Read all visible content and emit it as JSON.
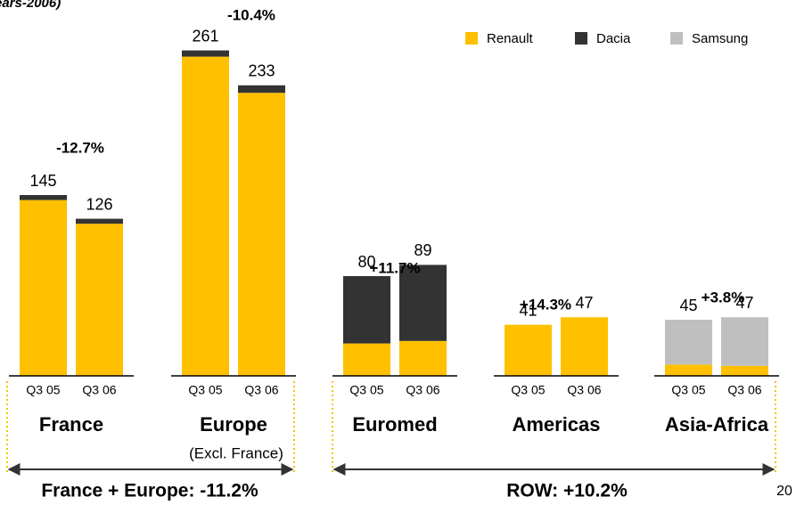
{
  "chart_data": {
    "type": "stacked_bar",
    "title": "ears-2006)",
    "categories": [
      "Q3 05",
      "Q3 06",
      "Q3 05",
      "Q3 06",
      "Q3 05",
      "Q3 06",
      "Q3 05",
      "Q3 06",
      "Q3 05",
      "Q3 06"
    ],
    "series": [
      {
        "name": "Renault",
        "color": "#FFC000",
        "values": [
          141,
          122,
          256,
          227,
          26,
          28,
          41,
          47,
          9,
          8
        ]
      },
      {
        "name": "Dacia",
        "color": "#333333",
        "values": [
          4,
          4,
          5,
          6,
          54,
          61,
          0,
          0,
          0,
          0
        ]
      },
      {
        "name": "Samsung",
        "color": "#BFBFBF",
        "values": [
          0,
          0,
          0,
          0,
          0,
          0,
          0,
          0,
          36,
          39
        ]
      }
    ],
    "totals": [
      145,
      126,
      261,
      233,
      80,
      89,
      41,
      47,
      45,
      47
    ],
    "groups": [
      {
        "name": "France",
        "change": "-12.7%"
      },
      {
        "name": "Europe",
        "note": "(Excl. France)",
        "change": "-10.4%"
      },
      {
        "name": "Euromed",
        "change": "+11.7%"
      },
      {
        "name": "Americas",
        "change": "+14.3%"
      },
      {
        "name": "Asia-Africa",
        "change": "+3.8%"
      }
    ],
    "brackets": [
      "France + Europe: -11.2%",
      "ROW: +10.2%"
    ],
    "page_number": "20",
    "ylim": [
      0,
      300
    ],
    "legend": "top-right"
  }
}
